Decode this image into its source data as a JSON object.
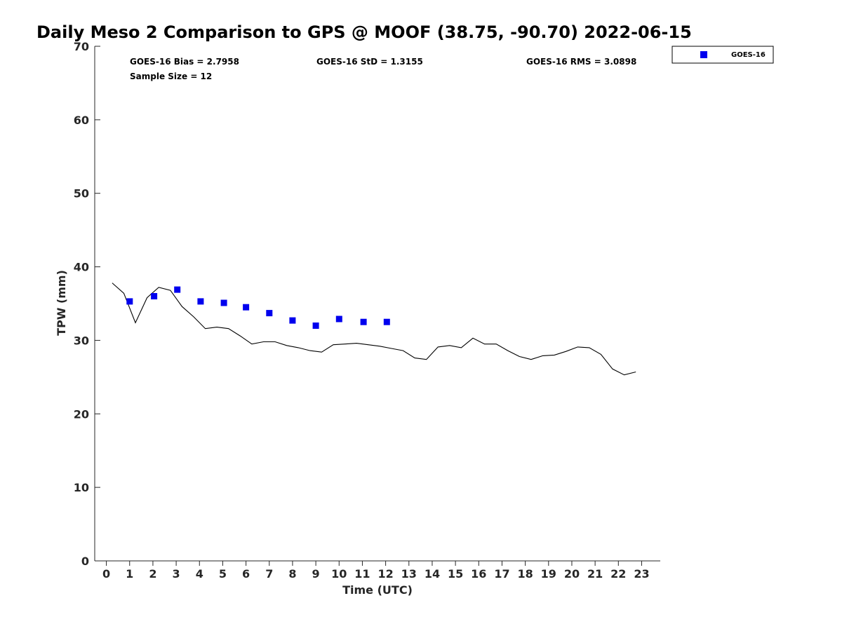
{
  "chart_data": {
    "type": "scatter",
    "title": "Daily Meso 2 Comparison to GPS @ MOOF (38.75, -90.70) 2022-06-15",
    "xlabel": "Time (UTC)",
    "ylabel": "TPW (mm)",
    "xlim": [
      -0.5,
      23.8
    ],
    "ylim": [
      0,
      70
    ],
    "xticks": [
      0,
      1,
      2,
      3,
      4,
      5,
      6,
      7,
      8,
      9,
      10,
      11,
      12,
      13,
      14,
      15,
      16,
      17,
      18,
      19,
      20,
      21,
      22,
      23
    ],
    "yticks": [
      0,
      10,
      20,
      30,
      40,
      50,
      60,
      70
    ],
    "grid": false,
    "legend_position": "top-right, outside axes",
    "stats": {
      "bias": "GOES-16 Bias = 2.7958",
      "std": "GOES-16 StD = 1.3155",
      "rms": "GOES-16 RMS = 3.0898",
      "sample": "Sample Size = 12"
    },
    "series": [
      {
        "name": "GOES-16",
        "kind": "markers",
        "marker": "square",
        "color": "#0000ee",
        "x": [
          1.0,
          2.05,
          3.05,
          4.05,
          5.05,
          6.0,
          7.0,
          8.0,
          9.0,
          10.0,
          11.05,
          12.05
        ],
        "y": [
          35.3,
          36.0,
          36.9,
          35.3,
          35.1,
          34.5,
          33.7,
          32.7,
          32.0,
          32.9,
          32.5,
          32.5
        ]
      },
      {
        "kind": "line",
        "color": "#000000",
        "x": [
          0.25,
          0.75,
          1.25,
          1.75,
          2.25,
          2.75,
          3.25,
          3.75,
          4.25,
          4.75,
          5.25,
          5.75,
          6.25,
          6.75,
          7.25,
          7.75,
          8.25,
          8.75,
          9.25,
          9.75,
          10.25,
          10.75,
          11.25,
          11.75,
          12.25,
          12.75,
          13.25,
          13.75,
          14.25,
          14.75,
          15.25,
          15.75,
          16.25,
          16.75,
          17.25,
          17.75,
          18.25,
          18.75,
          19.25,
          19.75,
          20.25,
          20.75,
          21.25,
          21.75,
          22.25,
          22.75
        ],
        "y": [
          37.8,
          36.4,
          32.4,
          35.8,
          37.2,
          36.8,
          34.6,
          33.2,
          31.6,
          31.8,
          31.6,
          30.6,
          29.5,
          29.8,
          29.8,
          29.3,
          29.0,
          28.6,
          28.4,
          29.4,
          29.5,
          29.6,
          29.4,
          29.2,
          28.9,
          28.6,
          27.6,
          27.4,
          29.1,
          29.3,
          29.0,
          30.3,
          29.5,
          29.5,
          28.6,
          27.8,
          27.4,
          27.9,
          28.0,
          28.5,
          29.1,
          29.0,
          28.1,
          26.1,
          25.3,
          25.7
        ]
      }
    ]
  }
}
